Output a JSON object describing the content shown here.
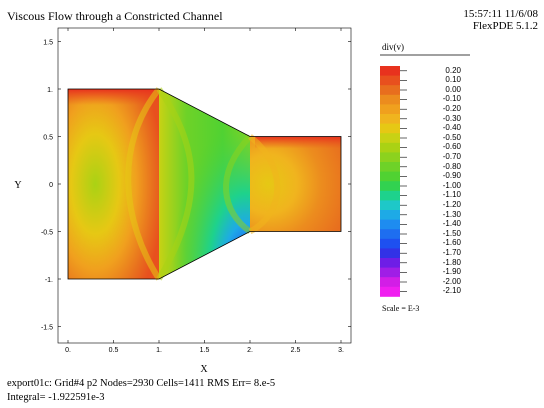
{
  "header": {
    "title": "Viscous Flow through a Constricted Channel",
    "timestamp": "15:57:11 11/6/08",
    "software": "FlexPDE 5.1.2"
  },
  "chart_data": {
    "type": "heatmap",
    "title": "Viscous Flow through a Constricted Channel",
    "xlabel": "X",
    "ylabel": "Y",
    "xlim": [
      -0.1,
      3.1
    ],
    "ylim": [
      -1.6,
      1.6
    ],
    "x_ticks": [
      "0.",
      "0.5",
      "1.",
      "1.5",
      "2.",
      "2.5",
      "3."
    ],
    "y_ticks": [
      "1.5",
      "1.",
      "0.5",
      "0",
      "-0.5",
      "-1.",
      "-1.5"
    ],
    "x_tick_values": [
      0,
      0.5,
      1,
      1.5,
      2,
      2.5,
      3
    ],
    "y_tick_values": [
      1.5,
      1,
      0.5,
      0,
      -0.5,
      -1,
      -1.5
    ],
    "domain_outline": [
      [
        0,
        1
      ],
      [
        1,
        1
      ],
      [
        2,
        0.5
      ],
      [
        3,
        0.5
      ],
      [
        3,
        -0.5
      ],
      [
        2,
        -0.5
      ],
      [
        1,
        -1
      ],
      [
        0,
        -1
      ]
    ],
    "colorbar": {
      "label": "div(v)",
      "scale": "Scale = E-3",
      "levels": [
        "0.20",
        "0.10",
        "0.00",
        "-0.10",
        "-0.20",
        "-0.30",
        "-0.40",
        "-0.50",
        "-0.60",
        "-0.70",
        "-0.80",
        "-0.90",
        "-1.00",
        "-1.10",
        "-1.20",
        "-1.30",
        "-1.40",
        "-1.50",
        "-1.60",
        "-1.70",
        "-1.80",
        "-1.90",
        "-2.00",
        "-2.10"
      ],
      "colors": [
        "#e8321e",
        "#e8501e",
        "#e86e1e",
        "#ec8c1e",
        "#f0a01e",
        "#f0b41e",
        "#e6c814",
        "#c8d214",
        "#aad214",
        "#8cd21e",
        "#6ed228",
        "#50d232",
        "#32d250",
        "#1ed28c",
        "#1ec8c8",
        "#1eaae6",
        "#1e8cf0",
        "#1e6ef0",
        "#1e50f0",
        "#3232e6",
        "#6e1ee6",
        "#a01ee6",
        "#d21ee6",
        "#f01ef0"
      ]
    }
  },
  "footer": {
    "line1": "export01c:  Grid#4  p2  Nodes=2930 Cells=1411 RMS Err= 8.e-5",
    "line2": "Integral= -1.922591e-3"
  }
}
